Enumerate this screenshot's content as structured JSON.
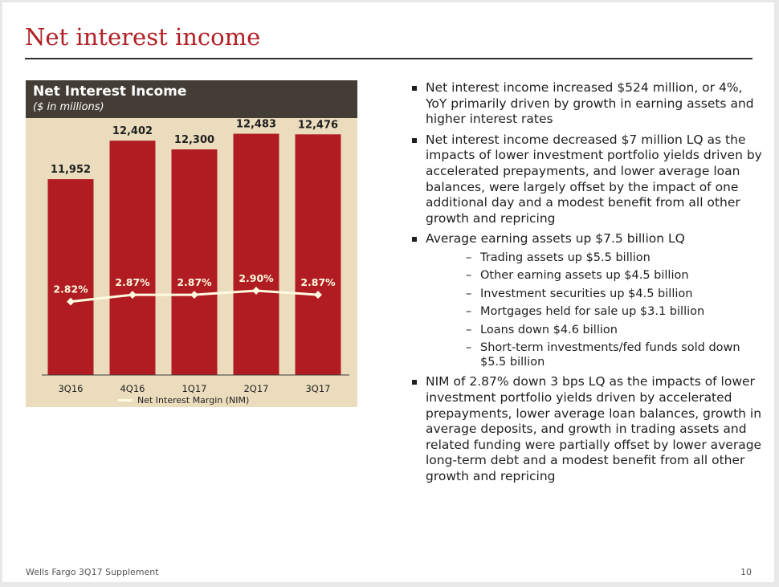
{
  "slide": {
    "title": "Net interest income",
    "footer": "Wells Fargo 3Q17 Supplement",
    "page_number": "10"
  },
  "chart_header": {
    "title": "Net Interest Income",
    "subtitle": "($ in millions)"
  },
  "chart_data": {
    "type": "bar",
    "title": "Net Interest Income",
    "subtitle": "($ in millions)",
    "categories": [
      "3Q16",
      "4Q16",
      "1Q17",
      "2Q17",
      "3Q17"
    ],
    "series": [
      {
        "values": [
          11952,
          12402,
          12300,
          12483,
          12476
        ],
        "labels": [
          "11,952",
          "12,402",
          "12,300",
          "12,483",
          "12,476"
        ],
        "color": "#b01c22"
      },
      {
        "name": "Net Interest Margin (NIM)",
        "type": "line",
        "values": [
          2.82,
          2.87,
          2.87,
          2.9,
          2.87
        ],
        "labels": [
          "2.82%",
          "2.87%",
          "2.87%",
          "2.90%",
          "2.87%"
        ],
        "color": "#fffbe0"
      }
    ],
    "ylim": [
      0,
      13000
    ],
    "legend": "bottom",
    "grid": false
  },
  "bullets": [
    {
      "text": "Net interest income increased $524 million, or 4%, YoY primarily driven by growth in earning assets and higher interest rates"
    },
    {
      "text": "Net interest income decreased $7 million LQ as the impacts of lower investment portfolio yields driven by accelerated prepayments, and lower average loan balances, were largely offset by the impact of one additional day and a modest benefit from all other growth and repricing"
    },
    {
      "text": "Average earning assets up $7.5 billion LQ",
      "sub": [
        "Trading assets up $5.5 billion",
        "Other earning assets up $4.5 billion",
        "Investment securities up $4.5 billion",
        "Mortgages held for sale up $3.1 billion",
        "Loans down $4.6 billion",
        "Short-term investments/fed funds sold down $5.5 billion"
      ]
    },
    {
      "text": "NIM of 2.87% down 3 bps LQ as the impacts of lower investment portfolio yields driven by accelerated prepayments, lower average loan balances, growth in average deposits, and growth in trading assets and related funding were partially offset by lower average long-term debt and a modest benefit from all other growth and repricing"
    }
  ]
}
